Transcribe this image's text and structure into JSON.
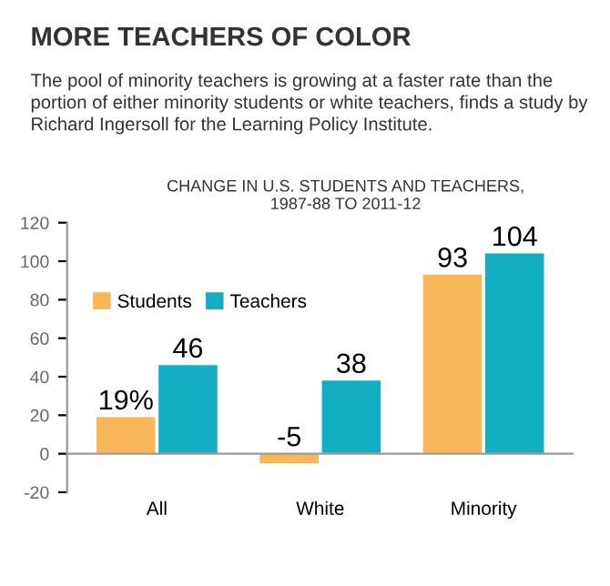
{
  "chart_data": {
    "type": "bar",
    "title": "MORE TEACHERS OF COLOR",
    "subtitle": "The pool of minority teachers is growing at a faster rate than the portion of either minority students or white teachers, finds a study by Richard Ingersoll for the Learning Policy Institute.",
    "annotations": [
      "CHANGE IN U.S. STUDENTS AND TEACHERS,\n1987-88 TO 2011-12"
    ],
    "categories": [
      "All",
      "White",
      "Minority"
    ],
    "series": [
      {
        "name": "Students",
        "color": "#f9b857",
        "values": [
          19,
          -5,
          93
        ],
        "value_labels": [
          "19%",
          "-5",
          "93"
        ]
      },
      {
        "name": "Teachers",
        "color": "#13aec3",
        "values": [
          46,
          38,
          104
        ],
        "value_labels": [
          "46",
          "38",
          "104"
        ]
      }
    ],
    "ylim": [
      -20,
      120
    ],
    "yticks": [
      -20,
      0,
      20,
      40,
      60,
      80,
      100,
      120
    ],
    "legend": "top left",
    "grid": false
  }
}
